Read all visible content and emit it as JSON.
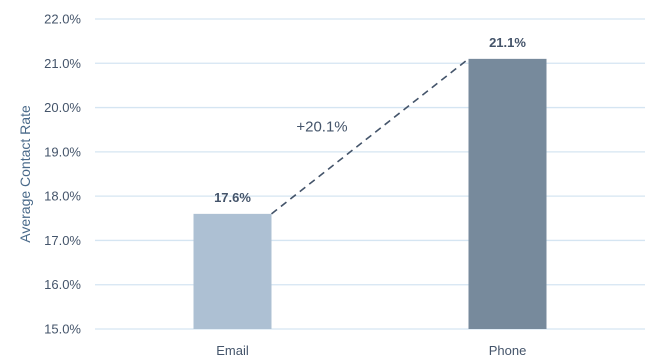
{
  "chart_data": {
    "type": "bar",
    "categories": [
      "Email",
      "Phone"
    ],
    "values": [
      17.6,
      21.1
    ],
    "data_labels": [
      "17.6%",
      "21.1%"
    ],
    "bar_colors": [
      "#adc0d3",
      "#778a9c"
    ],
    "title": "",
    "xlabel": "",
    "ylabel": "Average Contact Rate",
    "ylim": [
      15.0,
      22.0
    ],
    "y_ticks": [
      15.0,
      16.0,
      17.0,
      18.0,
      19.0,
      20.0,
      21.0,
      22.0
    ],
    "y_tick_labels": [
      "15.0%",
      "16.0%",
      "17.0%",
      "18.0%",
      "19.0%",
      "20.0%",
      "21.0%",
      "22.0%"
    ],
    "grid": true,
    "annotation": {
      "text": "+20.1%",
      "connects": [
        "Email",
        "Phone"
      ],
      "style": "dashed"
    },
    "colors": {
      "grid": "#d5e5f2",
      "text": "#44546a",
      "axis_label": "#4a6a8a",
      "connector": "#44546a"
    }
  }
}
